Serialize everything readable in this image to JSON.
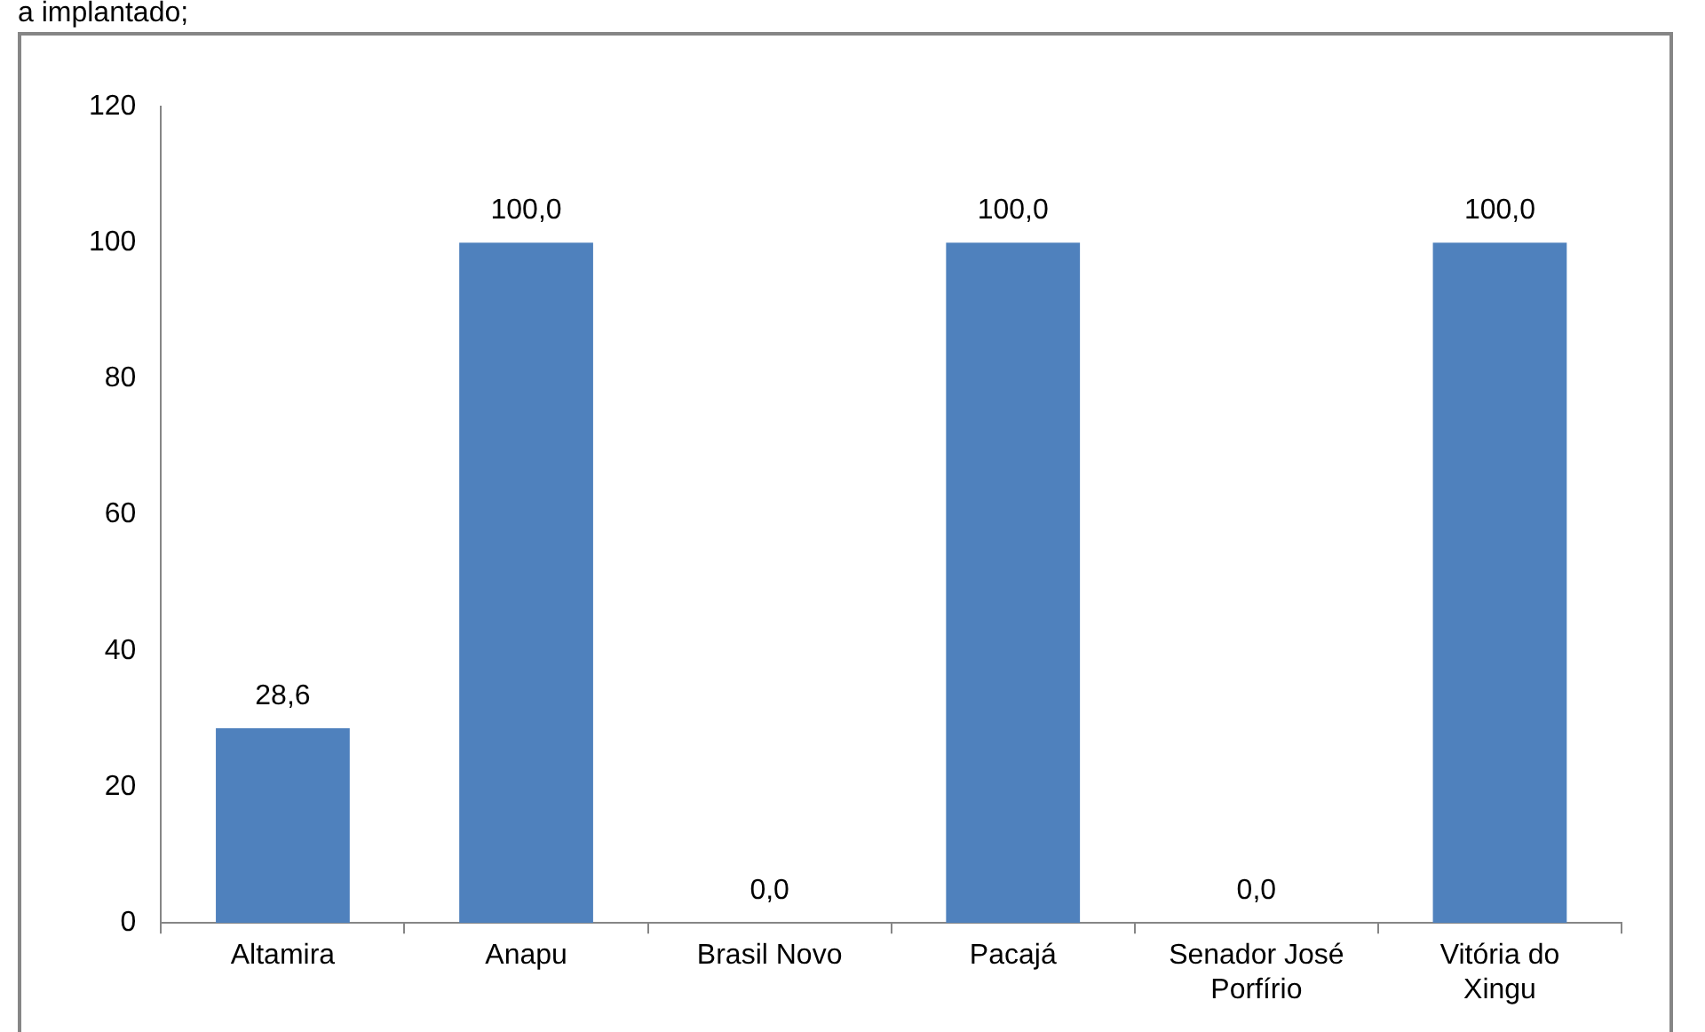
{
  "chart_data": {
    "type": "bar",
    "annotations": [
      "a implantado;"
    ],
    "categories": [
      "Altamira",
      "Anapu",
      "Brasil Novo",
      "Pacajá",
      "Senador José Porfírio",
      "Vitória do Xingu"
    ],
    "values": [
      28.6,
      100,
      0,
      100,
      0,
      100
    ],
    "value_labels": [
      "28,6",
      "100,0",
      "0,0",
      "100,0",
      "0,0",
      "100,0"
    ],
    "color": "#4f81bd",
    "ylim": [
      0,
      120
    ],
    "yticks": [
      0,
      20,
      40,
      60,
      80,
      100,
      120
    ]
  }
}
